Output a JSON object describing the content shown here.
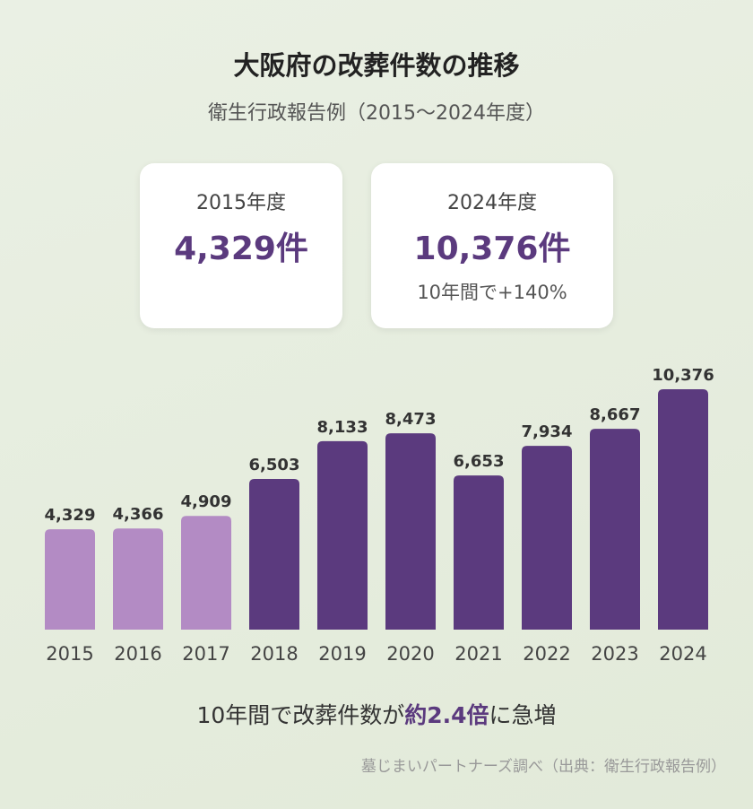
{
  "header": {
    "title": "大阪府の改葬件数の推移",
    "subtitle": "衛生行政報告例（2015〜2024年度）"
  },
  "cards": [
    {
      "year": "2015年度",
      "value": "4,329件",
      "note": ""
    },
    {
      "year": "2024年度",
      "value": "10,376件",
      "note": "10年間で+140%"
    }
  ],
  "chart_data": {
    "type": "bar",
    "categories": [
      "2015",
      "2016",
      "2017",
      "2018",
      "2019",
      "2020",
      "2021",
      "2022",
      "2023",
      "2024"
    ],
    "values": [
      4329,
      4366,
      4909,
      6503,
      8133,
      8473,
      6653,
      7934,
      8667,
      10376
    ],
    "value_labels": [
      "4,329",
      "4,366",
      "4,909",
      "6,503",
      "8,133",
      "8,473",
      "6,653",
      "7,934",
      "8,667",
      "10,376"
    ],
    "colors": [
      "#b38bc4",
      "#b38bc4",
      "#b38bc4",
      "#5b3a7e",
      "#5b3a7e",
      "#5b3a7e",
      "#5b3a7e",
      "#5b3a7e",
      "#5b3a7e",
      "#5b3a7e"
    ],
    "ylim": [
      0,
      10376
    ],
    "grid": false,
    "title": "",
    "xlabel": "",
    "ylabel": ""
  },
  "summary": {
    "before": "10年間で改葬件数が",
    "highlight": "約2.4倍",
    "after": "に急増"
  },
  "source": "墓じまいパートナーズ調べ（出典：衛生行政報告例）",
  "colors": {
    "accent": "#5b3a7e",
    "light": "#b38bc4"
  }
}
